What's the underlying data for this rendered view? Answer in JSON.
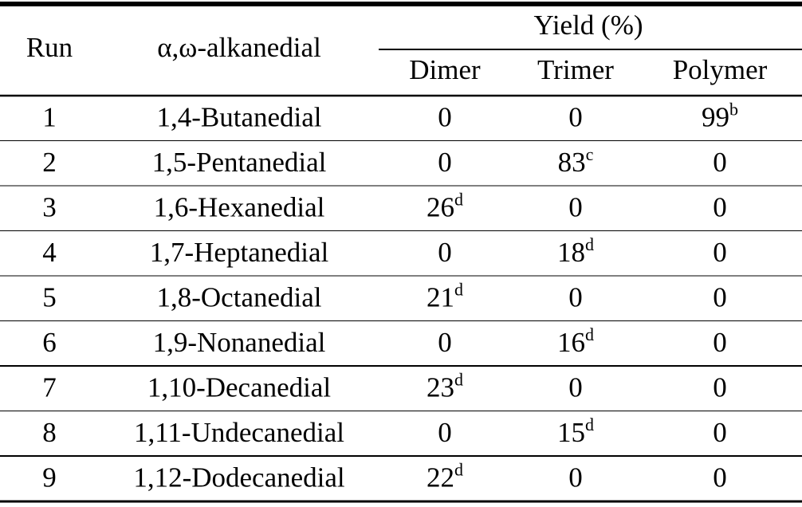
{
  "table": {
    "header": {
      "run": "Run",
      "compound": "α,ω-alkanedial",
      "group": "Yield (%)",
      "columns": [
        "Dimer",
        "Trimer",
        "Polymer"
      ]
    },
    "rows": [
      {
        "run": 1,
        "name": "1,4-Butanedial",
        "yields": [
          {
            "value": 0
          },
          {
            "value": 0
          },
          {
            "value": 99,
            "note": "b"
          }
        ]
      },
      {
        "run": 2,
        "name": "1,5-Pentanedial",
        "yields": [
          {
            "value": 0
          },
          {
            "value": 83,
            "note": "c"
          },
          {
            "value": 0
          }
        ]
      },
      {
        "run": 3,
        "name": "1,6-Hexanedial",
        "yields": [
          {
            "value": 26,
            "note": "d"
          },
          {
            "value": 0
          },
          {
            "value": 0
          }
        ]
      },
      {
        "run": 4,
        "name": "1,7-Heptanedial",
        "yields": [
          {
            "value": 0
          },
          {
            "value": 18,
            "note": "d"
          },
          {
            "value": 0
          }
        ]
      },
      {
        "run": 5,
        "name": "1,8-Octanedial",
        "yields": [
          {
            "value": 21,
            "note": "d"
          },
          {
            "value": 0
          },
          {
            "value": 0
          }
        ]
      },
      {
        "run": 6,
        "name": "1,9-Nonanedial",
        "yields": [
          {
            "value": 0
          },
          {
            "value": 16,
            "note": "d"
          },
          {
            "value": 0
          }
        ]
      },
      {
        "run": 7,
        "name": "1,10-Decanedial",
        "yields": [
          {
            "value": 23,
            "note": "d"
          },
          {
            "value": 0
          },
          {
            "value": 0
          }
        ]
      },
      {
        "run": 8,
        "name": "1,11-Undecanedial",
        "yields": [
          {
            "value": 0
          },
          {
            "value": 15,
            "note": "d"
          },
          {
            "value": 0
          }
        ]
      },
      {
        "run": 9,
        "name": "1,12-Dodecanedial",
        "yields": [
          {
            "value": 22,
            "note": "d"
          },
          {
            "value": 0
          },
          {
            "value": 0
          }
        ]
      }
    ]
  }
}
